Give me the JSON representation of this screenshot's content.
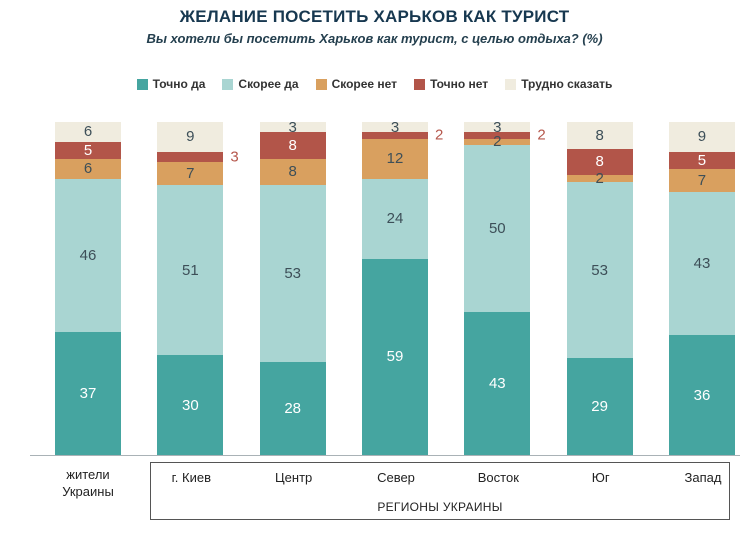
{
  "title": "ЖЕЛАНИЕ ПОСЕТИТЬ ХАРЬКОВ КАК ТУРИСТ",
  "subtitle": "Вы хотели бы посетить Харьков как турист, с целью отдыха? (%)",
  "chart_data": {
    "type": "bar",
    "stacked": true,
    "unit": "%",
    "title": "ЖЕЛАНИЕ ПОСЕТИТЬ ХАРЬКОВ КАК ТУРИСТ",
    "subtitle": "Вы хотели бы посетить Харьков как турист, с целью отдыха? (%)",
    "legend_position": "top",
    "grid": false,
    "ylim": [
      0,
      100
    ],
    "categories": [
      "жители Украины",
      "г. Киев",
      "Центр",
      "Север",
      "Восток",
      "Юг",
      "Запад"
    ],
    "series": [
      {
        "name": "Точно да",
        "color": "#45a5a0",
        "label_color": "#ffffff",
        "values": [
          37,
          30,
          28,
          59,
          43,
          29,
          36
        ]
      },
      {
        "name": "Скорее да",
        "color": "#a9d5d2",
        "label_color": "#3d4f58",
        "values": [
          46,
          51,
          53,
          24,
          50,
          53,
          43
        ]
      },
      {
        "name": "Скорее нет",
        "color": "#d9a05f",
        "label_color": "#3d4f58",
        "values": [
          6,
          7,
          8,
          12,
          2,
          2,
          7
        ]
      },
      {
        "name": "Точно нет",
        "color": "#b25549",
        "label_color": "#ffffff",
        "values": [
          5,
          3,
          8,
          2,
          2,
          8,
          5
        ],
        "outside_label_indices": [
          1,
          3,
          4
        ],
        "outside_label_color": "#b5574c"
      },
      {
        "name": "Трудно сказать",
        "color": "#f0ecdf",
        "label_color": "#3d4f58",
        "values": [
          6,
          9,
          3,
          3,
          3,
          8,
          9
        ]
      }
    ],
    "region_group": {
      "label": "РЕГИОНЫ УКРАИНЫ",
      "categories": [
        "г. Киев",
        "Центр",
        "Север",
        "Восток",
        "Юг",
        "Запад"
      ]
    }
  }
}
